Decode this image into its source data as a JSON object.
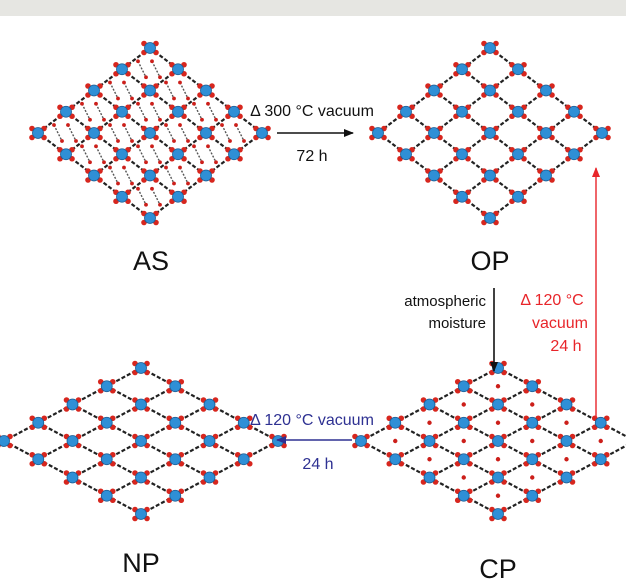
{
  "phases": [
    {
      "id": "as",
      "label": "AS",
      "guests": "molecules"
    },
    {
      "id": "op",
      "label": "OP",
      "guests": "none"
    },
    {
      "id": "cp",
      "label": "CP",
      "guests": "dots"
    },
    {
      "id": "np",
      "label": "NP",
      "guests": "none"
    }
  ],
  "transitions": {
    "as_to_op": {
      "line1": "Δ 300 °C vacuum",
      "line2": "72 h",
      "color": "#111111"
    },
    "op_to_cp": {
      "line1": "atmospheric",
      "line2": "moisture",
      "color": "#111111"
    },
    "cp_to_op": {
      "line1": "Δ 120 °C",
      "line2": "vacuum",
      "line3": "24 h",
      "color": "#e8252a"
    },
    "cp_to_np": {
      "line1": "Δ 120 °C vacuum",
      "line2": "24 h",
      "color": "#2e3192"
    }
  },
  "colors": {
    "node_blue": "#2f8fd6",
    "node_oxygen": "#d7261e",
    "linker": "#222222",
    "guest_red": "#cc1f1a"
  }
}
